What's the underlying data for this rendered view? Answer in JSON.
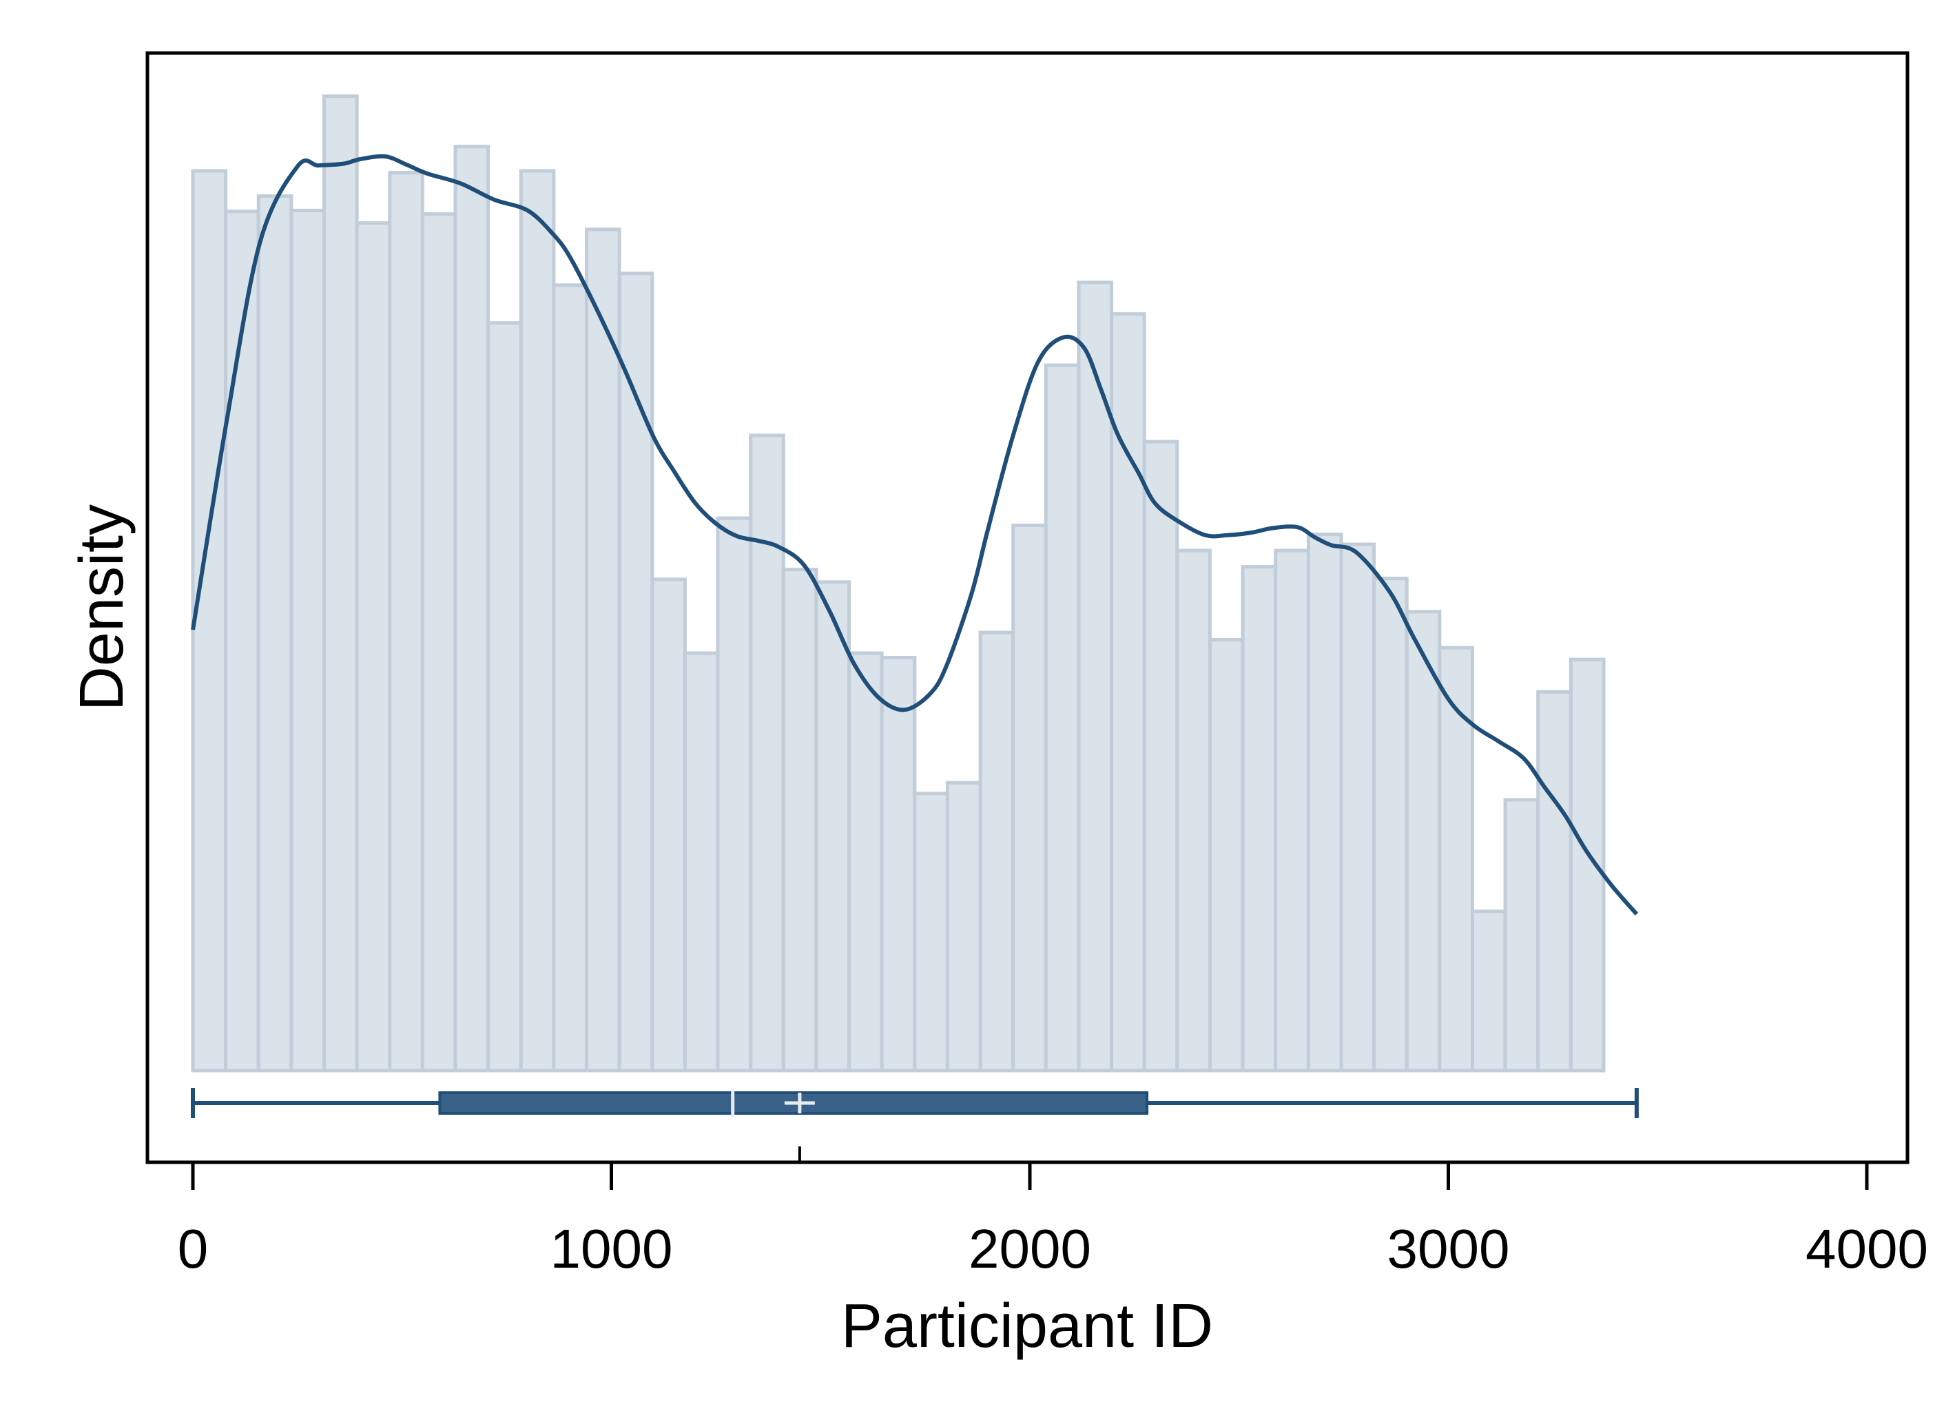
{
  "chart_data": {
    "type": "bar",
    "subtype": "histogram with density curve and box plot",
    "xlabel": "Participant ID",
    "ylabel": "Density",
    "xlim": [
      -100,
      4000
    ],
    "x_ticks": [
      0,
      1000,
      2000,
      3000,
      4000
    ],
    "x_tick_labels": [
      "0",
      "1000",
      "2000",
      "3000",
      "4000"
    ],
    "y_ticks": [],
    "grid": false,
    "legend": "none",
    "bin_width": 78.4,
    "bin_start": 0,
    "bin_heights": [
      1.0,
      0.955,
      0.972,
      0.956,
      1.083,
      0.942,
      0.998,
      0.952,
      1.027,
      0.831,
      1.0,
      0.873,
      0.935,
      0.886,
      0.546,
      0.464,
      0.614,
      0.706,
      0.557,
      0.543,
      0.464,
      0.459,
      0.308,
      0.32,
      0.487,
      0.606,
      0.784,
      0.876,
      0.841,
      0.699,
      0.578,
      0.479,
      0.56,
      0.578,
      0.596,
      0.585,
      0.547,
      0.51,
      0.47,
      0.177,
      0.301,
      0.421,
      0.457
    ],
    "density_curve": {
      "x": [
        0,
        80,
        160,
        250,
        300,
        360,
        400,
        460,
        510,
        560,
        640,
        720,
        800,
        860,
        900,
        960,
        1030,
        1100,
        1150,
        1200,
        1250,
        1300,
        1350,
        1400,
        1460,
        1520,
        1580,
        1640,
        1700,
        1760,
        1800,
        1860,
        1900,
        1960,
        2020,
        2080,
        2130,
        2170,
        2210,
        2260,
        2300,
        2360,
        2420,
        2470,
        2530,
        2580,
        2640,
        2680,
        2720,
        2780,
        2860,
        2920,
        3000,
        3060,
        3120,
        3180,
        3230,
        3280,
        3330,
        3390,
        3450
      ],
      "y": [
        0.49,
        0.72,
        0.92,
        1.005,
        1.006,
        1.008,
        1.013,
        1.016,
        1.007,
        0.997,
        0.986,
        0.968,
        0.956,
        0.93,
        0.905,
        0.851,
        0.781,
        0.705,
        0.666,
        0.631,
        0.608,
        0.594,
        0.589,
        0.582,
        0.562,
        0.512,
        0.452,
        0.414,
        0.401,
        0.418,
        0.449,
        0.529,
        0.602,
        0.706,
        0.788,
        0.815,
        0.803,
        0.757,
        0.707,
        0.664,
        0.63,
        0.609,
        0.595,
        0.595,
        0.598,
        0.603,
        0.604,
        0.593,
        0.584,
        0.576,
        0.532,
        0.479,
        0.413,
        0.384,
        0.366,
        0.347,
        0.315,
        0.283,
        0.244,
        0.206,
        0.174
      ]
    },
    "box_plot": {
      "min": 0,
      "q1": 590,
      "median": 1290,
      "mean": 1450,
      "q3": 2280,
      "max": 3450
    },
    "colors": {
      "bar_fill": "#dae2ea",
      "bar_edge": "#c1cdd8",
      "line": "#1f4e79",
      "box_fill": "#3a6187",
      "box_edge": "#1f4e79"
    }
  }
}
